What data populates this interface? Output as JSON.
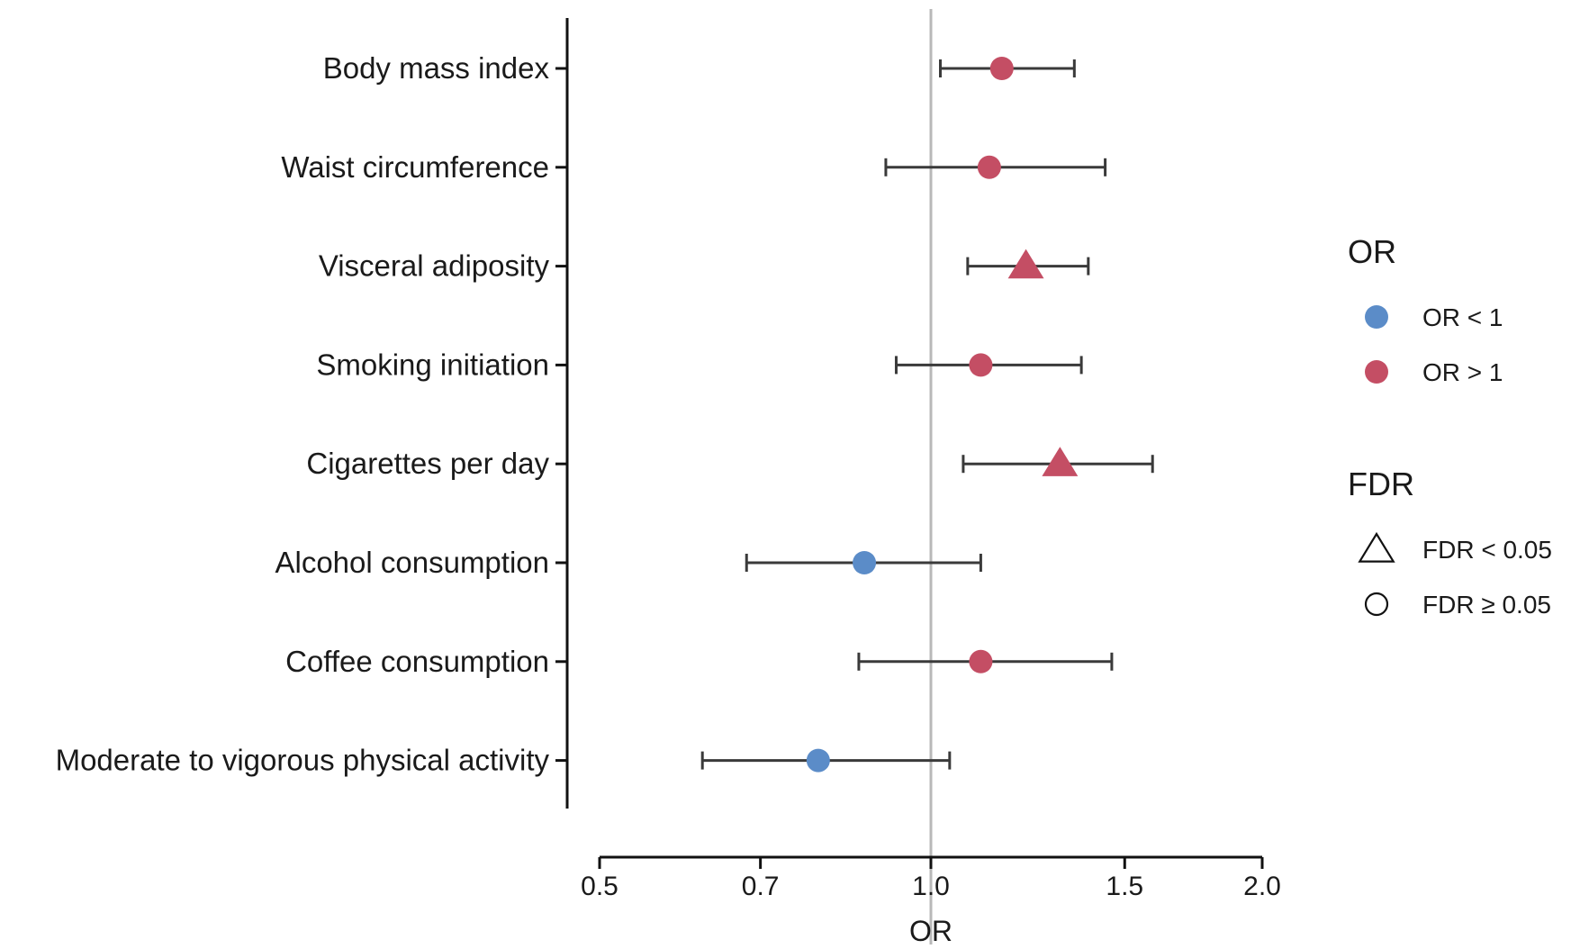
{
  "chart_data": {
    "type": "forest",
    "xlabel": "OR",
    "xscale": "log",
    "xlim": [
      0.5,
      2.0
    ],
    "xticks": [
      0.5,
      0.7,
      1.0,
      1.5,
      2.0
    ],
    "xtick_labels": [
      "0.5",
      "0.7",
      "1.0",
      "1.5",
      "2.0"
    ],
    "reference_line": 1.0,
    "rows": [
      {
        "label": "Body mass index",
        "or": 1.16,
        "lower": 1.02,
        "upper": 1.35,
        "direction": "OR > 1",
        "fdr": "FDR ≥ 0.05"
      },
      {
        "label": "Waist circumference",
        "or": 1.13,
        "lower": 0.91,
        "upper": 1.44,
        "direction": "OR > 1",
        "fdr": "FDR ≥ 0.05"
      },
      {
        "label": "Visceral adiposity",
        "or": 1.22,
        "lower": 1.08,
        "upper": 1.39,
        "direction": "OR > 1",
        "fdr": "FDR < 0.05"
      },
      {
        "label": "Smoking initiation",
        "or": 1.11,
        "lower": 0.93,
        "upper": 1.37,
        "direction": "OR > 1",
        "fdr": "FDR ≥ 0.05"
      },
      {
        "label": "Cigarettes per day",
        "or": 1.31,
        "lower": 1.07,
        "upper": 1.59,
        "direction": "OR > 1",
        "fdr": "FDR < 0.05"
      },
      {
        "label": "Alcohol consumption",
        "or": 0.87,
        "lower": 0.68,
        "upper": 1.11,
        "direction": "OR < 1",
        "fdr": "FDR ≥ 0.05"
      },
      {
        "label": "Coffee consumption",
        "or": 1.11,
        "lower": 0.86,
        "upper": 1.46,
        "direction": "OR > 1",
        "fdr": "FDR ≥ 0.05"
      },
      {
        "label": "Moderate to vigorous physical activity",
        "or": 0.79,
        "lower": 0.62,
        "upper": 1.04,
        "direction": "OR < 1",
        "fdr": "FDR ≥ 0.05"
      }
    ],
    "legend": {
      "placement": "right",
      "groups": [
        {
          "title": "OR",
          "items": [
            {
              "label": "OR < 1",
              "shape": "circle",
              "color": "#5b8cc8"
            },
            {
              "label": "OR > 1",
              "shape": "circle",
              "color": "#c44e64"
            }
          ]
        },
        {
          "title": "FDR",
          "items": [
            {
              "label": "FDR < 0.05",
              "shape": "triangle-open"
            },
            {
              "label": "FDR ≥ 0.05",
              "shape": "circle-open"
            }
          ]
        }
      ]
    },
    "colors": {
      "or_below_1": "#5b8cc8",
      "or_above_1": "#c44e64",
      "error_bar": "#3a3a3a",
      "reference_line": "#b8b8b8",
      "axis": "#111111"
    }
  }
}
